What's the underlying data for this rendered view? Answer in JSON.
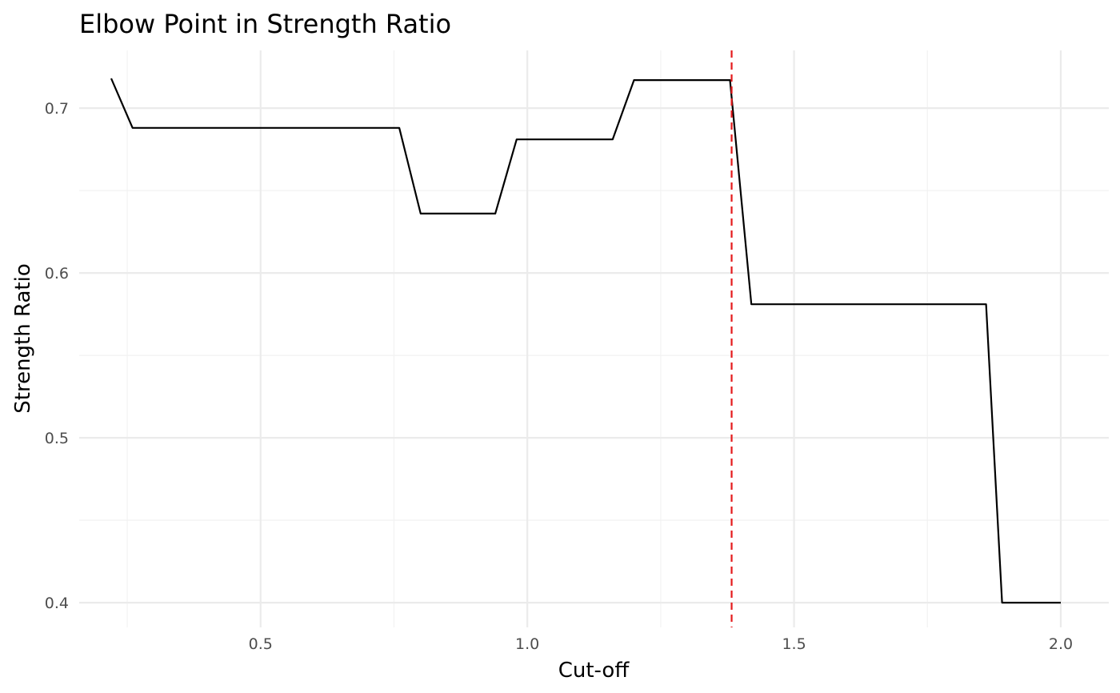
{
  "chart_data": {
    "type": "line",
    "title": "Elbow Point in Strength Ratio",
    "xlabel": "Cut-off",
    "ylabel": "Strength Ratio",
    "xlim": [
      0.16,
      2.09
    ],
    "ylim": [
      0.385,
      0.735
    ],
    "x_ticks": [
      0.5,
      1.0,
      1.5,
      2.0
    ],
    "x_tick_labels": [
      "0.5",
      "1.0",
      "1.5",
      "2.0"
    ],
    "x_minor_ticks": [
      0.25,
      0.75,
      1.25,
      1.75
    ],
    "y_ticks": [
      0.4,
      0.5,
      0.6,
      0.7
    ],
    "y_tick_labels": [
      "0.4",
      "0.5",
      "0.6",
      "0.7"
    ],
    "y_minor_ticks": [
      0.45,
      0.55,
      0.65
    ],
    "grid": true,
    "legend": "none",
    "series": [
      {
        "color": "#000000",
        "x": [
          0.22,
          0.26,
          0.76,
          0.8,
          0.94,
          0.98,
          1.16,
          1.2,
          1.38,
          1.42,
          1.86,
          1.89,
          2.0
        ],
        "y": [
          0.718,
          0.688,
          0.688,
          0.636,
          0.636,
          0.681,
          0.681,
          0.717,
          0.717,
          0.581,
          0.581,
          0.4,
          0.4
        ]
      }
    ],
    "annotations": [
      {
        "type": "vline",
        "x": 1.383,
        "color": "#e41a1c",
        "style": "dashed"
      }
    ]
  }
}
